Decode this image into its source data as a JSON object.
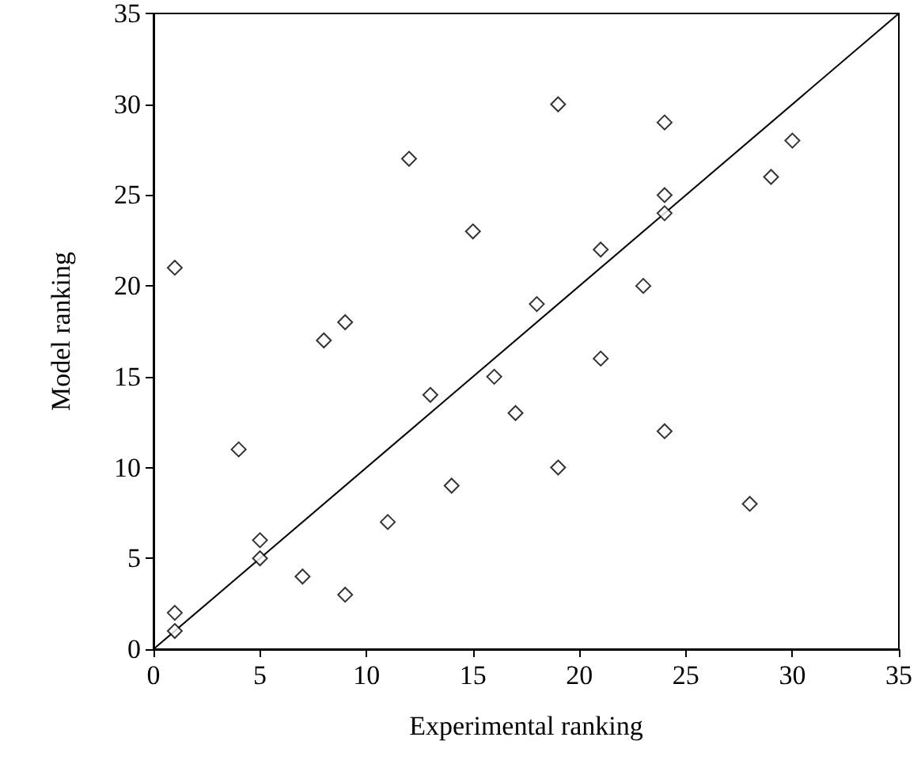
{
  "chart_data": {
    "type": "scatter",
    "xlabel": "Experimental ranking",
    "ylabel": "Model ranking",
    "xlim": [
      0,
      35
    ],
    "ylim": [
      0,
      35
    ],
    "xticks": [
      0,
      5,
      10,
      15,
      20,
      25,
      30,
      35
    ],
    "yticks": [
      0,
      5,
      10,
      15,
      20,
      25,
      30,
      35
    ],
    "grid": false,
    "marker": "diamond",
    "series": [
      {
        "color": "#000000",
        "x": [
          1,
          1,
          1,
          4,
          5,
          5,
          7,
          8,
          9,
          9,
          11,
          12,
          13,
          14,
          15,
          16,
          17,
          18,
          19,
          19,
          21,
          21,
          23,
          24,
          24,
          24,
          24,
          28,
          29,
          30
        ],
        "values": [
          21,
          2,
          1,
          11,
          6,
          5,
          4,
          17,
          18,
          3,
          7,
          27,
          14,
          9,
          23,
          15,
          13,
          19,
          30,
          10,
          22,
          16,
          20,
          29,
          25,
          24,
          12,
          8,
          26,
          28
        ]
      },
      {
        "type": "line",
        "color": "#000000",
        "marker": "none",
        "x": [
          0,
          35
        ],
        "values": [
          0,
          35
        ]
      }
    ]
  }
}
